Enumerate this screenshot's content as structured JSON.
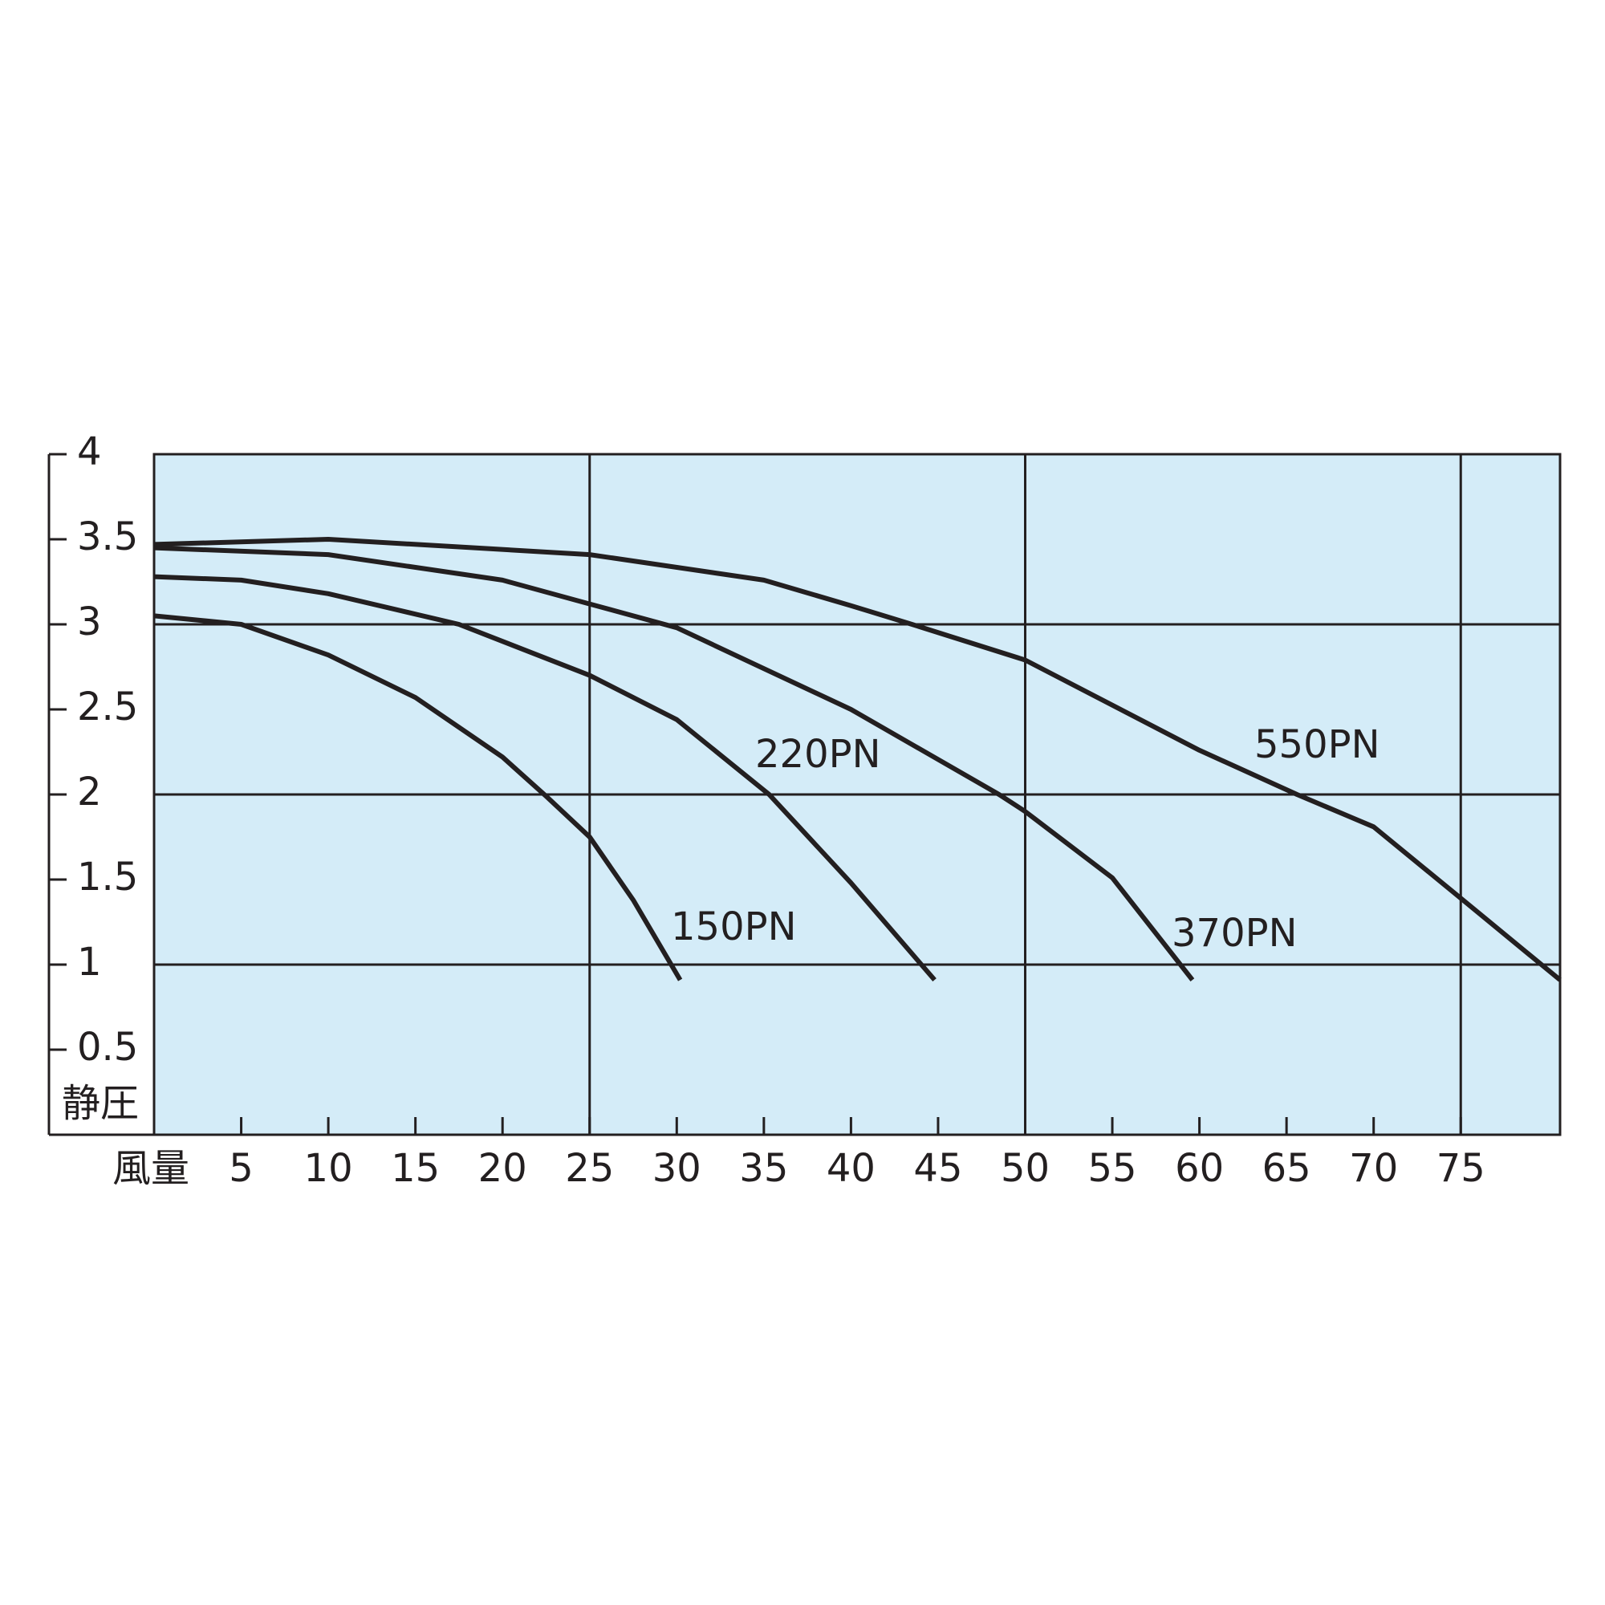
{
  "chart_data": {
    "type": "line",
    "x_label": "風量",
    "y_label": "静圧",
    "xlim": [
      0,
      80.7
    ],
    "ylim": [
      0,
      4
    ],
    "xticks": [
      5,
      10,
      15,
      20,
      25,
      30,
      35,
      40,
      45,
      50,
      55,
      60,
      65,
      70,
      75
    ],
    "yticks": [
      0.5,
      1,
      1.5,
      2,
      2.5,
      3,
      3.5,
      4
    ],
    "x_grid": [
      25,
      50,
      75
    ],
    "y_grid": [
      1,
      2,
      3
    ],
    "background": "#d4ecf8",
    "series": [
      {
        "name": "150PN",
        "color": "#231f20",
        "x": [
          0,
          5,
          10,
          15,
          20,
          22.5,
          25,
          27.5,
          30.2
        ],
        "values": [
          3.05,
          3.0,
          2.82,
          2.57,
          2.22,
          1.99,
          1.75,
          1.38,
          0.91
        ]
      },
      {
        "name": "220PN",
        "color": "#231f20",
        "x": [
          0,
          5,
          10,
          17.5,
          25,
          30,
          35.3,
          40,
          44.8
        ],
        "values": [
          3.28,
          3.26,
          3.18,
          3.0,
          2.7,
          2.44,
          2.0,
          1.48,
          0.91
        ]
      },
      {
        "name": "370PN",
        "color": "#231f20",
        "x": [
          0,
          10,
          20,
          25,
          30,
          40,
          48.5,
          50,
          55,
          59.6
        ],
        "values": [
          3.45,
          3.41,
          3.26,
          3.12,
          2.98,
          2.5,
          2.0,
          1.9,
          1.51,
          0.91
        ]
      },
      {
        "name": "550PN",
        "color": "#231f20",
        "x": [
          0,
          10,
          25,
          35,
          40,
          43.5,
          50,
          60,
          65.6,
          70,
          75,
          80.7
        ],
        "values": [
          3.47,
          3.5,
          3.41,
          3.26,
          3.11,
          3.0,
          2.79,
          2.26,
          2.0,
          1.81,
          1.39,
          0.91
        ]
      }
    ]
  }
}
